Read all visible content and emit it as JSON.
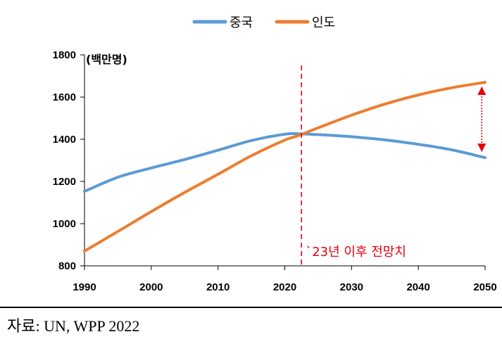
{
  "chart_data": {
    "type": "line",
    "unit_label": "(백만명)",
    "x": [
      1990,
      1995,
      2000,
      2005,
      2010,
      2015,
      2020,
      2022,
      2025,
      2030,
      2035,
      2040,
      2045,
      2050
    ],
    "x_ticks": [
      "1990",
      "2000",
      "2010",
      "2020",
      "2030",
      "2040",
      "2050"
    ],
    "y_ticks": [
      "800",
      "1000",
      "1200",
      "1400",
      "1600",
      "1800"
    ],
    "ylim": [
      800,
      1800
    ],
    "xlim": [
      1990,
      2050
    ],
    "series": [
      {
        "name": "중국",
        "color": "#5b9bd5",
        "values": [
          1153,
          1220,
          1264,
          1304,
          1348,
          1394,
          1424,
          1426,
          1422,
          1412,
          1397,
          1376,
          1350,
          1313
        ]
      },
      {
        "name": "인도",
        "color": "#ed7d31",
        "values": [
          870,
          963,
          1057,
          1148,
          1234,
          1322,
          1396,
          1417,
          1454,
          1514,
          1567,
          1610,
          1644,
          1670
        ]
      }
    ],
    "projection_start_x": 2022.5,
    "annotation": "`23년 이후 전망치",
    "gap_arrow_x": 2049.5,
    "grid": false,
    "legend_position": "top"
  },
  "source_note": "자료: UN, WPP 2022"
}
